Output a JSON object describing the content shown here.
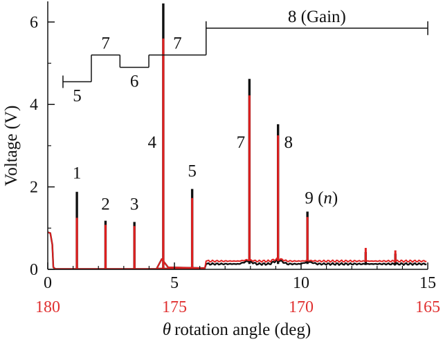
{
  "chart_data": {
    "type": "line",
    "ylabel": "Voltage (V)",
    "xlabel_symbol": "θ",
    "xlabel_text": "rotation angle (deg)",
    "xlim": [
      0,
      15
    ],
    "ylim": [
      0,
      6.5
    ],
    "x_ticks": [
      {
        "value": 0,
        "label": "0"
      },
      {
        "value": 5,
        "label": "5"
      },
      {
        "value": 10,
        "label": "10"
      },
      {
        "value": 15,
        "label": "15"
      }
    ],
    "x_ticks_secondary": [
      {
        "value": 0,
        "label": "180"
      },
      {
        "value": 5,
        "label": "175"
      },
      {
        "value": 10,
        "label": "170"
      },
      {
        "value": 15,
        "label": "165"
      }
    ],
    "y_ticks": [
      {
        "value": 0,
        "label": "0"
      },
      {
        "value": 2,
        "label": "2"
      },
      {
        "value": 4,
        "label": "4"
      },
      {
        "value": 6,
        "label": "6"
      }
    ],
    "colors": {
      "series_black": "#111111",
      "series_red": "#e02020",
      "secondary_axis": "#e03030"
    },
    "baseline": {
      "leading": [
        [
          0,
          0.9
        ],
        [
          0.1,
          0.88
        ],
        [
          0.18,
          0.6
        ],
        [
          0.22,
          0.05
        ],
        [
          0.3,
          0.01
        ]
      ],
      "black_plateau": {
        "x_start": 6.25,
        "x_end": 15,
        "level": 0.13
      },
      "red_plateau": {
        "x_start": 6.25,
        "x_end": 15,
        "level": 0.2
      },
      "bumps": [
        {
          "x": 4.6,
          "level": 0.25
        },
        {
          "x": 7.9,
          "level": 0.25
        },
        {
          "x": 9.1,
          "level": 0.3
        },
        {
          "x": 10.3,
          "level": 0.22
        }
      ]
    },
    "peaks": [
      {
        "x": 1.15,
        "black": 1.88,
        "red": 1.25,
        "label": "1"
      },
      {
        "x": 2.28,
        "black": 1.18,
        "red": 1.08,
        "label": "2"
      },
      {
        "x": 3.42,
        "black": 1.15,
        "red": 1.05,
        "label": "3"
      },
      {
        "x": 4.56,
        "black": 6.45,
        "red": 5.6,
        "label": "4"
      },
      {
        "x": 5.7,
        "black": 1.95,
        "red": 1.73,
        "label": "5"
      },
      {
        "x": 7.96,
        "black": 4.62,
        "red": 4.22,
        "label": "7"
      },
      {
        "x": 9.09,
        "black": 3.52,
        "red": 3.25,
        "label": "8"
      },
      {
        "x": 10.25,
        "black": 1.4,
        "red": 1.27,
        "label": "9 (n)"
      },
      {
        "x": 12.55,
        "black": 0.42,
        "red": 0.52,
        "label": ""
      },
      {
        "x": 13.72,
        "black": 0.38,
        "red": 0.46,
        "label": ""
      }
    ],
    "peak_labels": [
      {
        "text": "1",
        "x": 1.15,
        "y": 2.2
      },
      {
        "text": "2",
        "x": 2.28,
        "y": 1.45
      },
      {
        "text": "3",
        "x": 3.42,
        "y": 1.45
      },
      {
        "text": "4",
        "x": 4.12,
        "y": 2.95
      },
      {
        "text": "5",
        "x": 5.7,
        "y": 2.25
      },
      {
        "text": "7",
        "x": 7.62,
        "y": 2.95
      },
      {
        "text": "8",
        "x": 9.5,
        "y": 2.95
      },
      {
        "text_main": "9 (",
        "text_italic": "n",
        "text_end": ")",
        "x": 10.8,
        "y": 1.6
      }
    ],
    "regions": [
      {
        "label": "5",
        "x_start": 0.6,
        "x_end": 1.72,
        "level": 4.55,
        "label_pos": "below"
      },
      {
        "label": "7",
        "x_start": 1.72,
        "x_end": 2.85,
        "level": 5.2,
        "label_pos": "above"
      },
      {
        "label": "6",
        "x_start": 2.85,
        "x_end": 3.99,
        "level": 4.9,
        "label_pos": "below"
      },
      {
        "label": "7",
        "x_start": 3.99,
        "x_end": 6.25,
        "level": 5.2,
        "label_pos": "above"
      },
      {
        "label": "8 (Gain)",
        "x_start": 6.25,
        "x_end": 15,
        "level": 5.85,
        "label_pos": "above"
      }
    ]
  }
}
